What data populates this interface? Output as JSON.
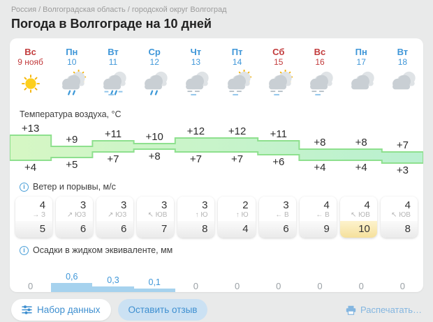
{
  "breadcrumb": {
    "separator": "/",
    "parts": [
      "Россия",
      "Волгоградская область",
      "городской округ Волгоград"
    ]
  },
  "title": "Погода в Волгограде на 10 дней",
  "days": [
    {
      "name": "Вс",
      "date": "9 нояб",
      "weekend": true
    },
    {
      "name": "Пн",
      "date": "10",
      "weekend": false
    },
    {
      "name": "Вт",
      "date": "11",
      "weekend": false
    },
    {
      "name": "Ср",
      "date": "12",
      "weekend": false
    },
    {
      "name": "Чт",
      "date": "13",
      "weekend": false
    },
    {
      "name": "Пт",
      "date": "14",
      "weekend": false
    },
    {
      "name": "Сб",
      "date": "15",
      "weekend": true
    },
    {
      "name": "Вс",
      "date": "16",
      "weekend": true
    },
    {
      "name": "Пн",
      "date": "17",
      "weekend": false
    },
    {
      "name": "Вт",
      "date": "18",
      "weekend": false
    }
  ],
  "weather_icons": [
    "sun",
    "sun-cloud-rain",
    "cloud-rain-sleet",
    "cloud-rain",
    "cloud-drizzle",
    "sun-cloud-drizzle",
    "sun-cloud-drizzle",
    "cloud-drizzle",
    "cloud",
    "cloud"
  ],
  "temperature": {
    "label": "Температура воздуха, °C",
    "max": [
      13,
      9,
      11,
      10,
      12,
      12,
      11,
      8,
      8,
      7
    ],
    "min": [
      4,
      5,
      7,
      8,
      7,
      7,
      6,
      4,
      4,
      3
    ]
  },
  "wind": {
    "label": "Ветер и порывы, м/с",
    "columns": [
      {
        "speed": 4,
        "arrow": "→",
        "dir": "З",
        "gust": 5,
        "highlight": false
      },
      {
        "speed": 3,
        "arrow": "↗",
        "dir": "ЮЗ",
        "gust": 6,
        "highlight": false
      },
      {
        "speed": 3,
        "arrow": "↗",
        "dir": "ЮЗ",
        "gust": 6,
        "highlight": false
      },
      {
        "speed": 3,
        "arrow": "↖",
        "dir": "ЮВ",
        "gust": 7,
        "highlight": false
      },
      {
        "speed": 3,
        "arrow": "↑",
        "dir": "Ю",
        "gust": 8,
        "highlight": false
      },
      {
        "speed": 2,
        "arrow": "↑",
        "dir": "Ю",
        "gust": 4,
        "highlight": false
      },
      {
        "speed": 3,
        "arrow": "←",
        "dir": "В",
        "gust": 6,
        "highlight": false
      },
      {
        "speed": 4,
        "arrow": "←",
        "dir": "В",
        "gust": 9,
        "highlight": false
      },
      {
        "speed": 4,
        "arrow": "↖",
        "dir": "ЮВ",
        "gust": 10,
        "highlight": true
      },
      {
        "speed": 4,
        "arrow": "↖",
        "dir": "ЮВ",
        "gust": 8,
        "highlight": false
      }
    ]
  },
  "precipitation": {
    "label": "Осадки в жидком эквиваленте, мм",
    "values": [
      "0",
      "0,6",
      "0,3",
      "0,1",
      "0",
      "0",
      "0",
      "0",
      "0",
      "0"
    ],
    "amounts": [
      0,
      0.6,
      0.3,
      0.1,
      0,
      0,
      0,
      0,
      0,
      0
    ]
  },
  "footer": {
    "dataset_label": "Набор данных",
    "feedback_label": "Оставить отзыв",
    "print_label": "Распечатать…"
  },
  "colors": {
    "accent_blue": "#3e96d8",
    "weekend_red": "#c23b3c",
    "band_fill_left": "#d6f7c4",
    "band_fill_right": "#b9f0d0",
    "band_stroke": "#8ee08e",
    "precip_bar": "#a6d2ee",
    "gust_highlight": "#f5e09c"
  }
}
